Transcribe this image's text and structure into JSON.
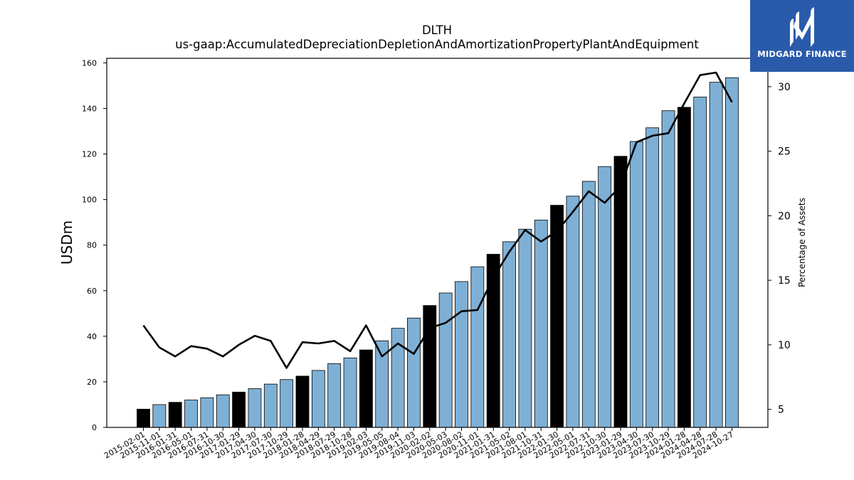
{
  "chart_data": {
    "type": "bar",
    "title": "DLTH",
    "subtitle": "us-gaap:AccumulatedDepreciationDepletionAndAmortizationPropertyPlantAndEquipment",
    "ylabel": "USDm",
    "ylabel_right": "Percentage of Assets",
    "ylim": [
      0,
      162
    ],
    "ylim_right": [
      3.6,
      32.2
    ],
    "yticks": [
      0,
      20,
      40,
      60,
      80,
      100,
      120,
      140,
      160
    ],
    "yticks_right": [
      5,
      10,
      15,
      20,
      25,
      30
    ],
    "grid": false,
    "categories": [
      "2015-02-01",
      "2015-11-01",
      "2016-01-31",
      "2016-05-01",
      "2016-07-31",
      "2016-10-30",
      "2017-01-29",
      "2017-04-30",
      "2017-07-30",
      "2017-10-29",
      "2018-01-28",
      "2018-04-29",
      "2018-07-29",
      "2018-10-28",
      "2019-02-03",
      "2019-05-05",
      "2019-08-04",
      "2019-11-03",
      "2020-02-02",
      "2020-05-03",
      "2020-08-02",
      "2020-11-01",
      "2021-01-31",
      "2021-05-02",
      "2021-08-01",
      "2021-10-31",
      "2022-01-30",
      "2022-05-01",
      "2022-07-31",
      "2022-10-30",
      "2023-01-29",
      "2023-04-30",
      "2023-07-30",
      "2023-10-29",
      "2024-01-28",
      "2024-04-28",
      "2024-07-28",
      "2024-10-27"
    ],
    "series": [
      {
        "type": "bar",
        "values": [
          8,
          10,
          11,
          12,
          13,
          14.3,
          15.5,
          17,
          19,
          21,
          22.5,
          25,
          28,
          30.5,
          34,
          38,
          43.5,
          48,
          53.5,
          59,
          64,
          70.5,
          76,
          81.5,
          87,
          91,
          97.5,
          101.5,
          108,
          114.5,
          119,
          125.5,
          131.5,
          139,
          140.5,
          145,
          151.5,
          153.5
        ],
        "highlight": [
          true,
          false,
          true,
          false,
          false,
          false,
          true,
          false,
          false,
          false,
          true,
          false,
          false,
          false,
          true,
          false,
          false,
          false,
          true,
          false,
          false,
          false,
          true,
          false,
          false,
          false,
          true,
          false,
          false,
          false,
          true,
          false,
          false,
          false,
          true,
          false,
          false,
          false
        ]
      },
      {
        "type": "line",
        "axis": "right",
        "values": [
          11.5,
          9.8,
          9.1,
          9.9,
          9.7,
          9.1,
          10,
          10.7,
          10.3,
          8.2,
          10.2,
          10.1,
          10.3,
          9.5,
          11.5,
          9.1,
          10.1,
          9.3,
          11.3,
          11.7,
          12.6,
          12.7,
          15.2,
          17.2,
          18.9,
          18,
          18.8,
          20.3,
          21.9,
          21,
          22.3,
          25.7,
          26.2,
          26.4,
          28.7,
          30.9,
          31.1,
          28.8
        ]
      }
    ],
    "colors": {
      "bar": "#7eb0d6",
      "bar_highlight": "#000000",
      "bar_edge": "#000000",
      "line": "#000000"
    }
  },
  "logo": {
    "text": "MIDGARD FINANCE",
    "background": "#2a5bab"
  }
}
